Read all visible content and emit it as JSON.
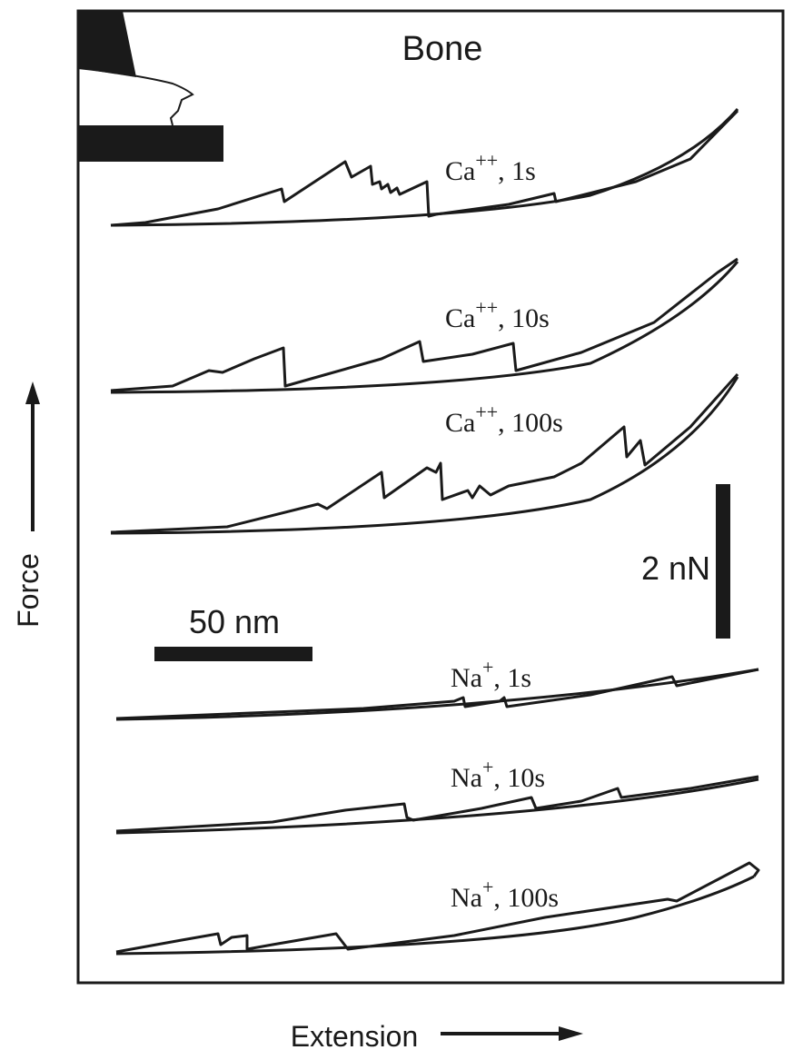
{
  "figure": {
    "title": "Bone",
    "y_label": "Force",
    "x_label": "Extension",
    "scale_bars": {
      "length": "50 nm",
      "force": "2 nN"
    },
    "traces": [
      {
        "ion": "Ca",
        "charge": "++",
        "suffix": ", 1s"
      },
      {
        "ion": "Ca",
        "charge": "++",
        "suffix": ", 10s"
      },
      {
        "ion": "Ca",
        "charge": "++",
        "suffix": ", 100s"
      },
      {
        "ion": "Na",
        "charge": "+",
        "suffix": ", 1s"
      },
      {
        "ion": "Na",
        "charge": "+",
        "suffix": ", 10s"
      },
      {
        "ion": "Na",
        "charge": "+",
        "suffix": ", 100s"
      }
    ]
  }
}
